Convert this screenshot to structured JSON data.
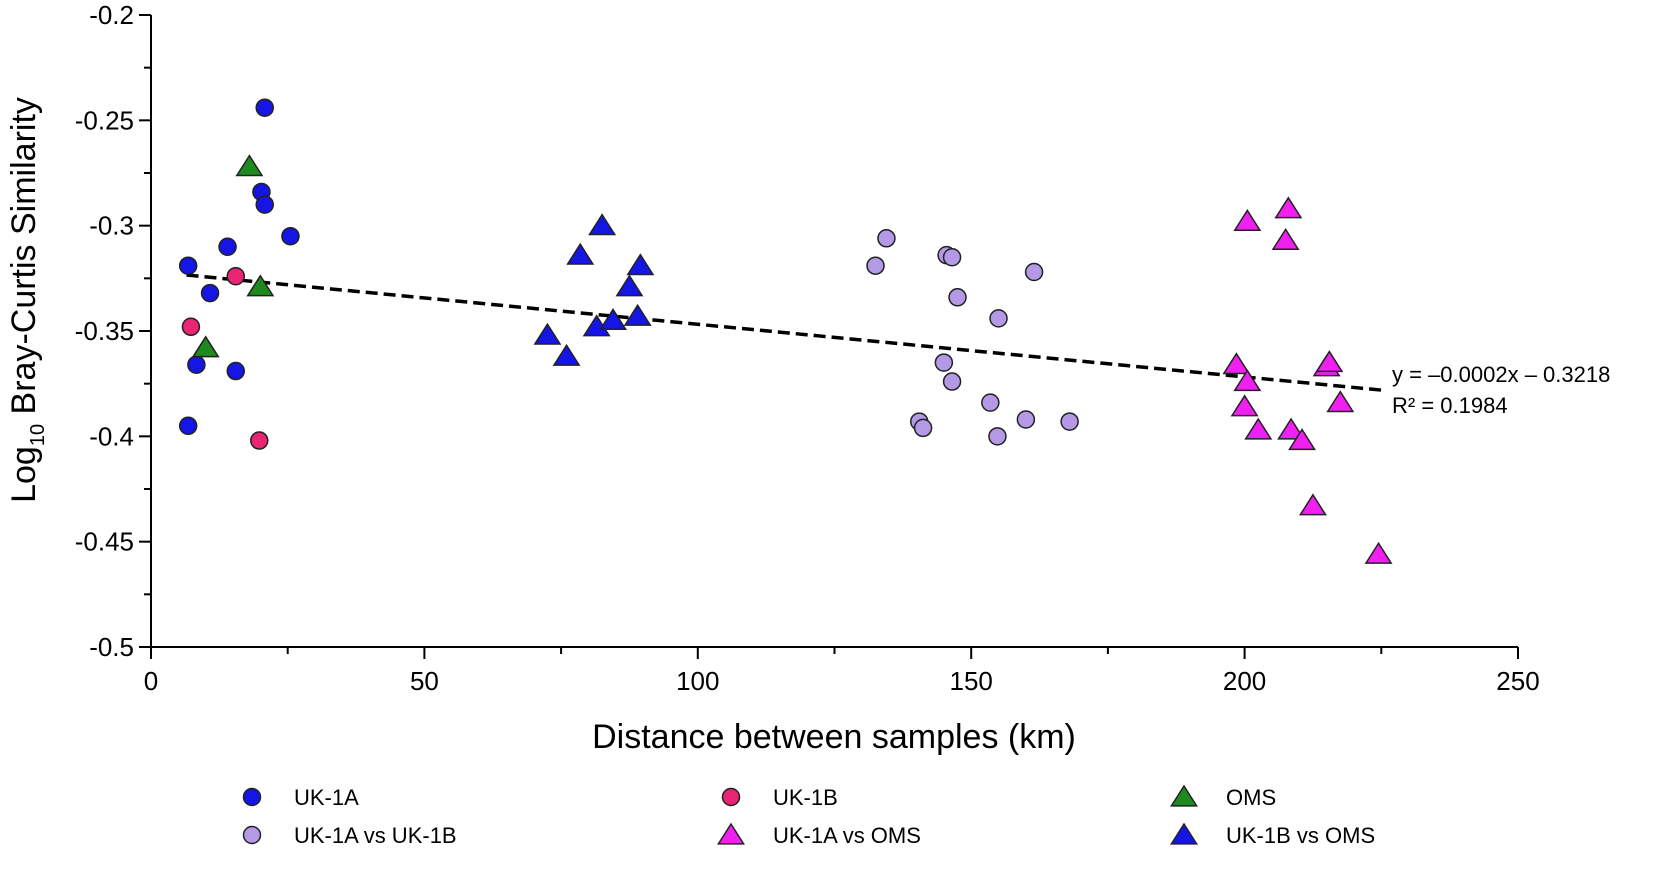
{
  "chart_data": {
    "type": "scatter",
    "title": "",
    "xlabel": "Distance between samples (km)",
    "ylabel_prefix": "Log",
    "ylabel_subscript": "10",
    "ylabel_suffix": " Bray-Curtis Similarity",
    "xlim": [
      0,
      250
    ],
    "ylim": [
      -0.5,
      -0.2
    ],
    "x_ticks": [
      0,
      50,
      100,
      150,
      200,
      250
    ],
    "x_tick_labels": [
      "0",
      "50",
      "100",
      "150",
      "200",
      "250"
    ],
    "y_ticks": [
      -0.5,
      -0.45,
      -0.4,
      -0.35,
      -0.3,
      -0.25,
      -0.2
    ],
    "y_tick_labels": [
      "-0.5",
      "-0.45",
      "-0.4",
      "-0.35",
      "-0.3",
      "-0.25",
      "-0.2"
    ],
    "grid": false,
    "legend_position": "bottom",
    "series": [
      {
        "name": "UK-1A",
        "marker": "circle",
        "color": "#1515e6",
        "points": [
          [
            6.8,
            -0.319
          ],
          [
            6.8,
            -0.395
          ],
          [
            8.3,
            -0.366
          ],
          [
            10.8,
            -0.332
          ],
          [
            14,
            -0.31
          ],
          [
            15.5,
            -0.369
          ],
          [
            20.2,
            -0.284
          ],
          [
            20.8,
            -0.29
          ],
          [
            20.8,
            -0.244
          ],
          [
            25.5,
            -0.305
          ]
        ]
      },
      {
        "name": "UK-1B",
        "marker": "circle",
        "color": "#ea2573",
        "points": [
          [
            7.3,
            -0.348
          ],
          [
            15.5,
            -0.324
          ],
          [
            19.8,
            -0.402
          ]
        ]
      },
      {
        "name": "OMS",
        "marker": "triangle",
        "color": "#1d8a1d",
        "points": [
          [
            10,
            -0.358
          ],
          [
            18,
            -0.272
          ],
          [
            20,
            -0.329
          ]
        ]
      },
      {
        "name": "UK-1A vs UK-1B",
        "marker": "circle",
        "color": "#b399e6",
        "points": [
          [
            132.5,
            -0.319
          ],
          [
            134.5,
            -0.306
          ],
          [
            140.5,
            -0.393
          ],
          [
            141.2,
            -0.396
          ],
          [
            145,
            -0.365
          ],
          [
            145.5,
            -0.314
          ],
          [
            146.5,
            -0.315
          ],
          [
            146.5,
            -0.374
          ],
          [
            147.5,
            -0.334
          ],
          [
            153.5,
            -0.384
          ],
          [
            154.8,
            -0.4
          ],
          [
            155,
            -0.344
          ],
          [
            160,
            -0.392
          ],
          [
            161.5,
            -0.322
          ],
          [
            168,
            -0.393
          ]
        ]
      },
      {
        "name": "UK-1A vs OMS",
        "marker": "triangle",
        "color": "#f020f0",
        "points": [
          [
            198.5,
            -0.366
          ],
          [
            200,
            -0.386
          ],
          [
            200.5,
            -0.298
          ],
          [
            200.5,
            -0.374
          ],
          [
            202.5,
            -0.397
          ],
          [
            207.5,
            -0.307
          ],
          [
            208,
            -0.292
          ],
          [
            208.5,
            -0.397
          ],
          [
            210.5,
            -0.402
          ],
          [
            212.5,
            -0.433
          ],
          [
            215,
            -0.367
          ],
          [
            215.5,
            -0.365
          ],
          [
            217.5,
            -0.384
          ],
          [
            224.5,
            -0.456
          ]
        ]
      },
      {
        "name": "UK-1B vs OMS",
        "marker": "triangle",
        "color": "#1515e6",
        "points": [
          [
            72.5,
            -0.352
          ],
          [
            76,
            -0.362
          ],
          [
            78.5,
            -0.314
          ],
          [
            81.5,
            -0.348
          ],
          [
            82.5,
            -0.3
          ],
          [
            84.5,
            -0.345
          ],
          [
            87.5,
            -0.329
          ],
          [
            89,
            -0.343
          ],
          [
            89.5,
            -0.319
          ]
        ]
      }
    ],
    "regression": {
      "x_range": [
        6.5,
        225
      ],
      "slope": -0.00025,
      "intercept": -0.3218,
      "equation": "y = –0.0002x – 0.3218",
      "r_squared": "R² = 0.1984"
    },
    "legend_order": [
      "UK-1A",
      "UK-1B",
      "OMS",
      "UK-1A vs UK-1B",
      "UK-1A vs OMS",
      "UK-1B vs OMS"
    ]
  }
}
